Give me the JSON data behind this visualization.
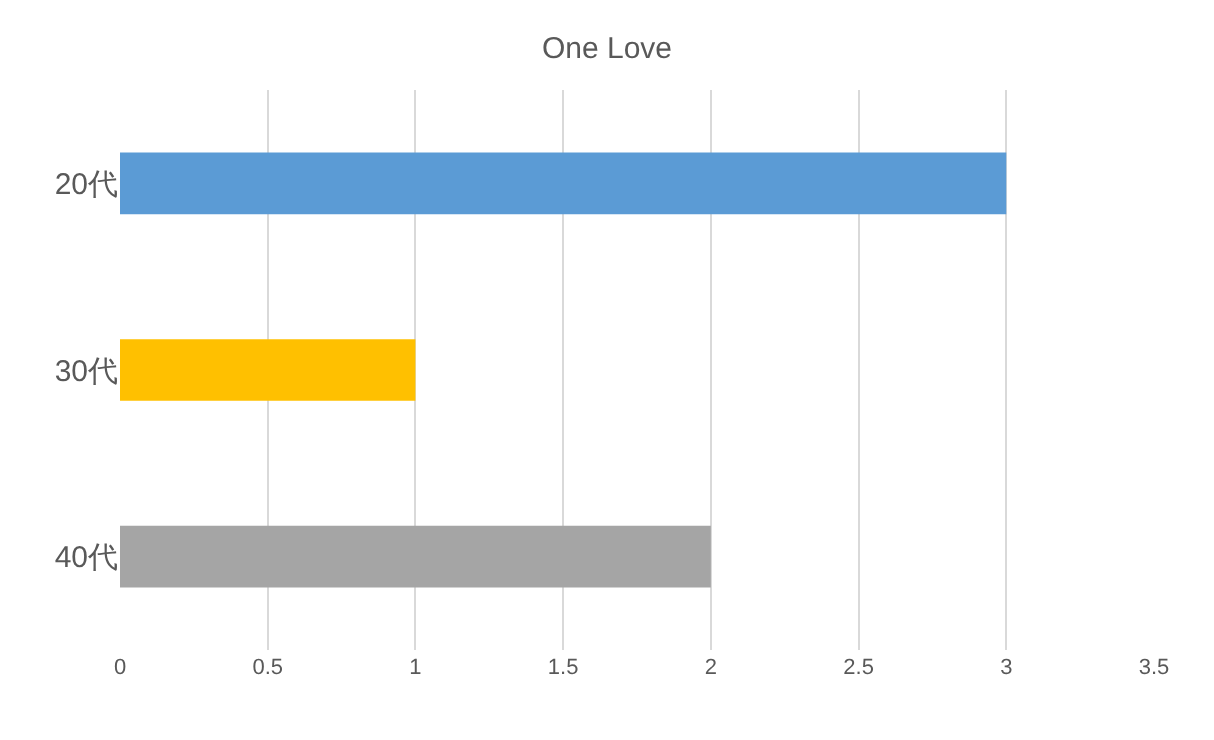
{
  "chart_data": {
    "type": "bar",
    "title": "One Love",
    "orientation": "horizontal",
    "categories": [
      "20代",
      "30代",
      "40代"
    ],
    "values": [
      3,
      1,
      2
    ],
    "colors": [
      "#5b9bd5",
      "#ffc000",
      "#a5a5a5"
    ],
    "xlim": [
      0,
      3.5
    ],
    "xticks": [
      0,
      0.5,
      1,
      1.5,
      2,
      2.5,
      3,
      3.5
    ],
    "grid": "x"
  }
}
